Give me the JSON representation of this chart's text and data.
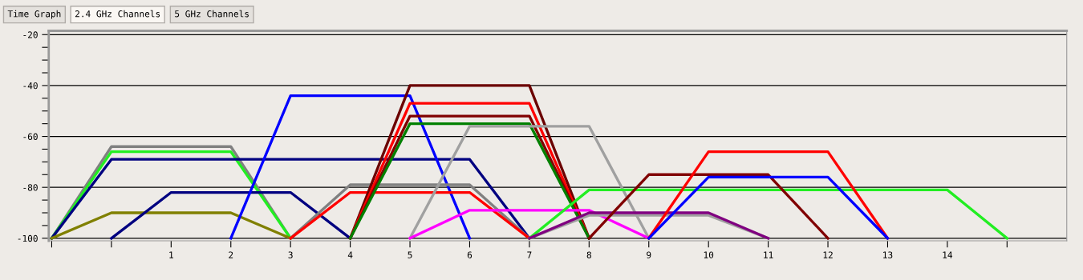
{
  "chart_data": {
    "type": "line",
    "annotations": [
      "Time Graph",
      "2.4 GHz Channels",
      "5 GHz Channels"
    ],
    "xlim": [
      -1.05,
      16
    ],
    "ylim": [
      -101,
      -18.5
    ],
    "xticks": [
      {
        "value": -1,
        "label": null
      },
      {
        "value": 0,
        "label": null
      },
      1,
      2,
      3,
      4,
      5,
      6,
      7,
      8,
      9,
      10,
      11,
      12,
      13,
      14,
      {
        "value": 15,
        "label": null
      }
    ],
    "yticks": [
      -20,
      {
        "value": -25,
        "label": null
      },
      {
        "value": -30,
        "label": null
      },
      {
        "value": -35,
        "label": null
      },
      -40,
      {
        "value": -45,
        "label": null
      },
      {
        "value": -50,
        "label": null
      },
      {
        "value": -55,
        "label": null
      },
      -60,
      {
        "value": -65,
        "label": null
      },
      {
        "value": -70,
        "label": null
      },
      {
        "value": -75,
        "label": null
      },
      -80,
      {
        "value": -85,
        "label": null
      },
      {
        "value": -90,
        "label": null
      },
      {
        "value": -95,
        "label": null
      },
      -100
    ],
    "grid": "y",
    "marker": "none",
    "line_style": "solid",
    "series": [
      {
        "color": "#808080",
        "x": [
          -1,
          0,
          2,
          3
        ],
        "values": [
          -100,
          -64,
          -64,
          -100
        ]
      },
      {
        "color": "#22ee22",
        "x": [
          -1,
          0,
          2,
          3
        ],
        "values": [
          -100,
          -66,
          -66,
          -100
        ]
      },
      {
        "color": "#000080",
        "x": [
          -1,
          0,
          6,
          7
        ],
        "values": [
          -100,
          -69,
          -69,
          -100
        ]
      },
      {
        "color": "#808000",
        "x": [
          -1,
          0,
          2,
          3
        ],
        "values": [
          -100,
          -90,
          -90,
          -100
        ]
      },
      {
        "color": "#000080",
        "x": [
          0,
          1,
          3,
          4
        ],
        "values": [
          -100,
          -82,
          -82,
          -100
        ]
      },
      {
        "color": "#0000ff",
        "x": [
          2,
          3,
          5,
          6
        ],
        "values": [
          -100,
          -44,
          -44,
          -100
        ]
      },
      {
        "color": "#808080",
        "x": [
          3,
          4,
          6,
          7
        ],
        "values": [
          -100,
          -79,
          -79,
          -100
        ]
      },
      {
        "color": "#ff0000",
        "x": [
          3,
          4,
          6,
          7
        ],
        "values": [
          -100,
          -82,
          -82,
          -100
        ]
      },
      {
        "color": "#6b0000",
        "x": [
          4,
          5,
          7,
          8
        ],
        "values": [
          -100,
          -40,
          -40,
          -100
        ]
      },
      {
        "color": "#ff0000",
        "x": [
          4,
          5,
          7,
          8
        ],
        "values": [
          -100,
          -47,
          -47,
          -100
        ]
      },
      {
        "color": "#800000",
        "x": [
          4,
          5,
          7,
          8
        ],
        "values": [
          -100,
          -52,
          -52,
          -100
        ]
      },
      {
        "color": "#008000",
        "x": [
          4,
          5,
          7,
          8
        ],
        "values": [
          -100,
          -55,
          -55,
          -100
        ]
      },
      {
        "color": "#a0a0a0",
        "x": [
          5,
          6,
          8,
          9
        ],
        "values": [
          -100,
          -56,
          -56,
          -100
        ]
      },
      {
        "color": "#ff00ff",
        "x": [
          5,
          6,
          8,
          9
        ],
        "values": [
          -100,
          -89,
          -89,
          -100
        ]
      },
      {
        "color": "#22ee22",
        "x": [
          7,
          8,
          14,
          15
        ],
        "values": [
          -100,
          -81,
          -81,
          -100
        ]
      },
      {
        "color": "#a0a0a0",
        "x": [
          7,
          8,
          10,
          11
        ],
        "values": [
          -100,
          -91,
          -91,
          -100
        ]
      },
      {
        "color": "#800080",
        "x": [
          7,
          8,
          10,
          11
        ],
        "values": [
          -100,
          -90,
          -90,
          -100
        ]
      },
      {
        "color": "#800000",
        "x": [
          8,
          9,
          11,
          12
        ],
        "values": [
          -100,
          -75,
          -75,
          -100
        ]
      },
      {
        "color": "#ff0000",
        "x": [
          9,
          10,
          12,
          13
        ],
        "values": [
          -100,
          -66,
          -66,
          -100
        ]
      },
      {
        "color": "#0000ff",
        "x": [
          9,
          10,
          12,
          13
        ],
        "values": [
          -100,
          -76,
          -76,
          -100
        ]
      }
    ]
  }
}
